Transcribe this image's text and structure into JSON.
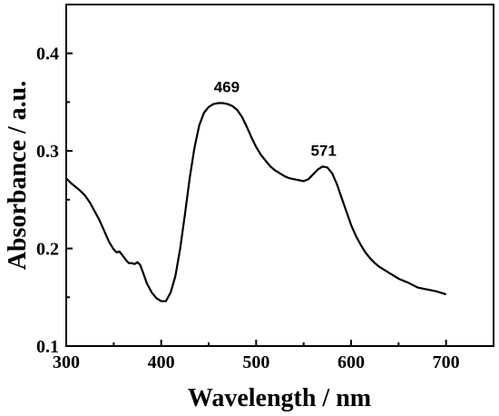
{
  "chart_data": {
    "type": "line",
    "title": "",
    "xlabel": "Wavelength / nm",
    "ylabel": "Absorbance / a.u.",
    "xlim": [
      300,
      750
    ],
    "ylim": [
      0.1,
      0.45
    ],
    "xticks": [
      300,
      400,
      500,
      600,
      700
    ],
    "yticks": [
      0.1,
      0.2,
      0.3,
      0.4
    ],
    "xtick_labels": [
      "300",
      "400",
      "500",
      "600",
      "700"
    ],
    "ytick_labels": [
      "0.1",
      "0.2",
      "0.3",
      "0.4"
    ],
    "grid": false,
    "legend": "none",
    "line_color": "#000000",
    "annotations": [
      {
        "text": "469",
        "x": 469,
        "y": 0.349
      },
      {
        "text": "571",
        "x": 571,
        "y": 0.284
      }
    ],
    "series": [
      {
        "x": [
          300,
          305,
          310,
          315,
          320,
          325,
          330,
          335,
          340,
          345,
          350,
          353,
          356,
          360,
          363,
          366,
          369,
          372,
          375,
          378,
          381,
          385,
          390,
          395,
          400,
          405,
          410,
          415,
          420,
          425,
          430,
          435,
          440,
          445,
          450,
          455,
          460,
          465,
          470,
          475,
          480,
          485,
          490,
          495,
          500,
          505,
          510,
          515,
          520,
          525,
          530,
          535,
          540,
          545,
          550,
          555,
          560,
          565,
          570,
          575,
          580,
          585,
          590,
          595,
          600,
          605,
          610,
          615,
          620,
          625,
          630,
          640,
          650,
          660,
          670,
          680,
          690,
          700
        ],
        "y": [
          0.272,
          0.267,
          0.263,
          0.259,
          0.254,
          0.247,
          0.238,
          0.229,
          0.218,
          0.207,
          0.199,
          0.196,
          0.197,
          0.192,
          0.188,
          0.185,
          0.185,
          0.184,
          0.186,
          0.183,
          0.175,
          0.164,
          0.155,
          0.149,
          0.146,
          0.146,
          0.155,
          0.172,
          0.2,
          0.235,
          0.272,
          0.303,
          0.326,
          0.339,
          0.345,
          0.348,
          0.349,
          0.349,
          0.348,
          0.346,
          0.342,
          0.335,
          0.325,
          0.314,
          0.304,
          0.296,
          0.29,
          0.284,
          0.28,
          0.277,
          0.274,
          0.272,
          0.271,
          0.27,
          0.269,
          0.271,
          0.276,
          0.281,
          0.284,
          0.283,
          0.277,
          0.266,
          0.252,
          0.238,
          0.224,
          0.213,
          0.204,
          0.196,
          0.19,
          0.185,
          0.181,
          0.175,
          0.169,
          0.165,
          0.16,
          0.158,
          0.156,
          0.153
        ]
      }
    ]
  }
}
